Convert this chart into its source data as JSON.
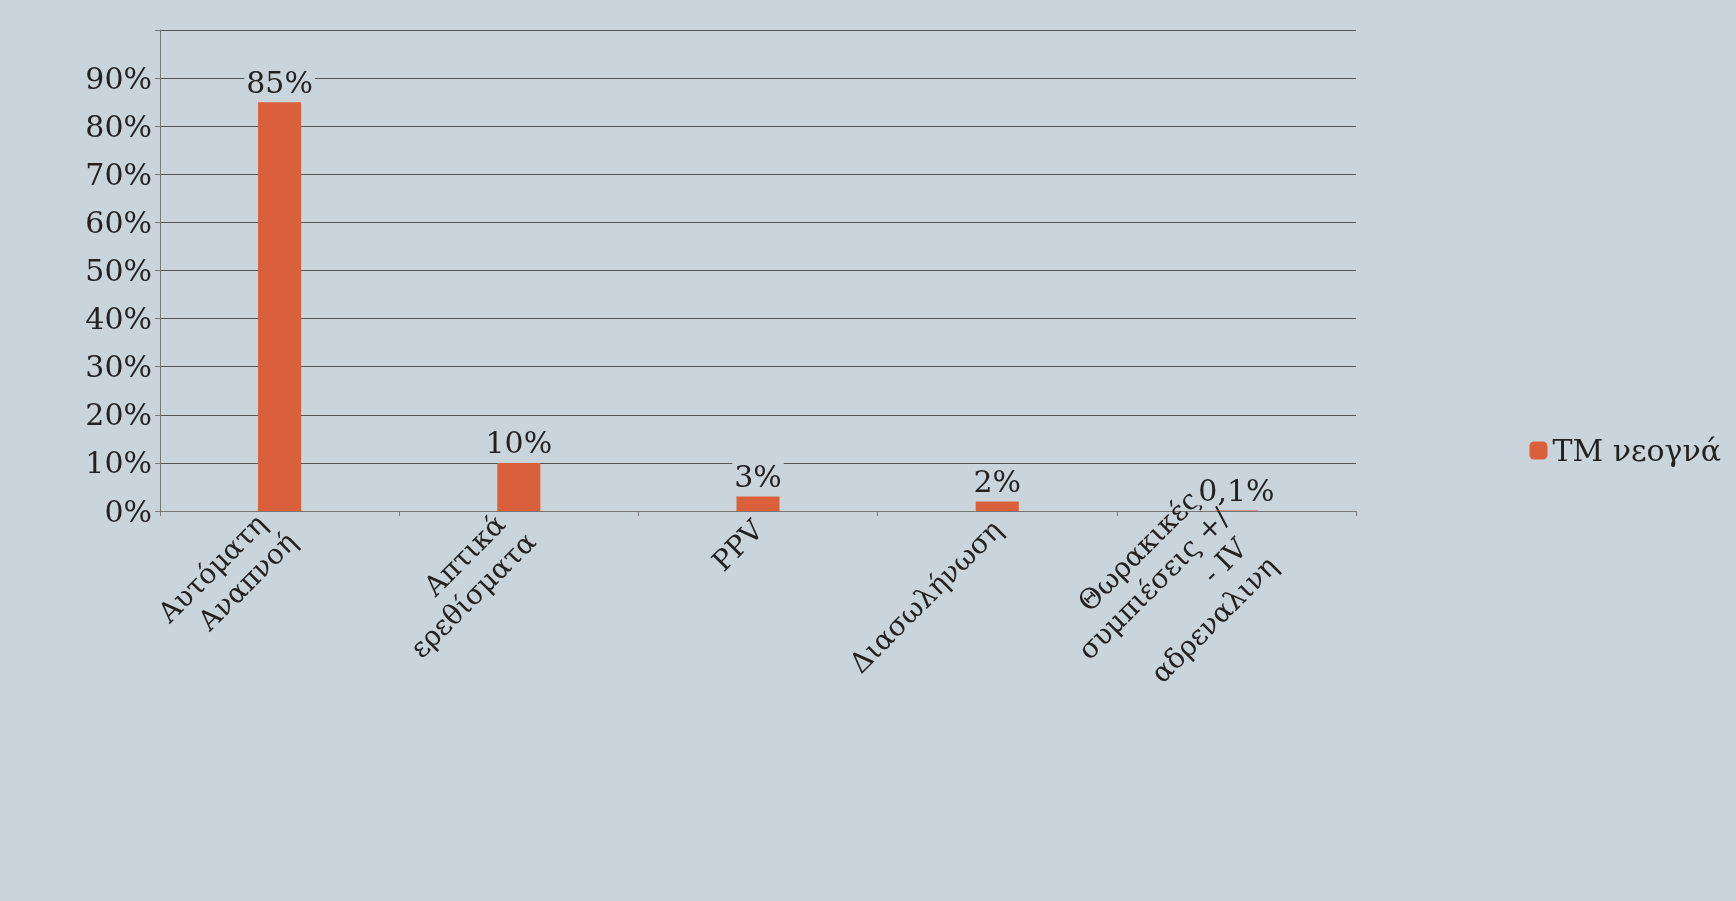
{
  "chart_data": {
    "type": "bar",
    "categories": [
      "Αυτόματη Αναπνοή",
      "Απτικά ερεθίσματα",
      "PPV",
      "Διασωλήνωση",
      "Θωρακικές συμπιέσεις +/- IV αδρεναλινη"
    ],
    "series": [
      {
        "name": "TM νεογνά",
        "color": "#d9603b",
        "values": [
          85,
          10,
          3,
          2,
          0.1
        ],
        "value_labels": [
          "85%",
          "10%",
          "3%",
          "2%",
          "0,1%"
        ]
      }
    ],
    "ylim": [
      0,
      100
    ],
    "yticks": [
      {
        "value": 0,
        "label": "0%"
      },
      {
        "value": 10,
        "label": "10%"
      },
      {
        "value": 20,
        "label": "20%"
      },
      {
        "value": 30,
        "label": "30%"
      },
      {
        "value": 40,
        "label": "40%"
      },
      {
        "value": 50,
        "label": "50%"
      },
      {
        "value": 60,
        "label": "60%"
      },
      {
        "value": 70,
        "label": "70%"
      },
      {
        "value": 80,
        "label": "80%"
      },
      {
        "value": 90,
        "label": "90%"
      },
      {
        "value": 100,
        "label": null
      }
    ],
    "grid": "y",
    "legend": "right"
  }
}
